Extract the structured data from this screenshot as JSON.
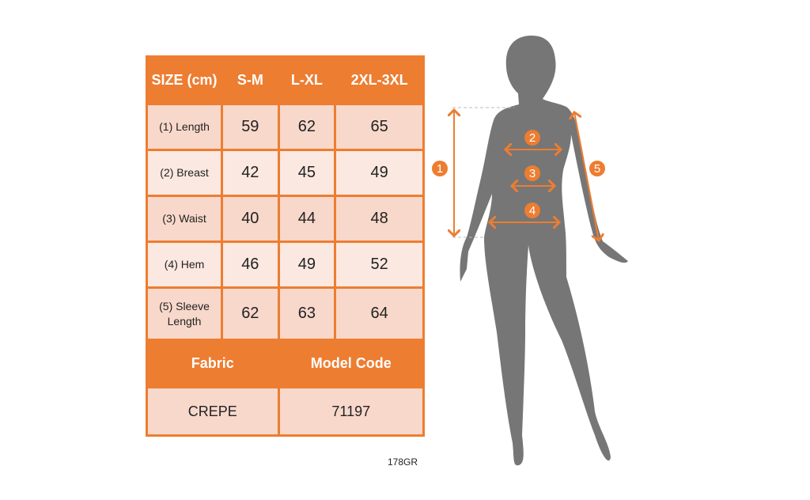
{
  "header": {
    "size": "SIZE (cm)",
    "sizes": [
      "S-M",
      "L-XL",
      "2XL-3XL"
    ]
  },
  "rows": [
    {
      "label": "(1) Length",
      "values": [
        "59",
        "62",
        "65"
      ]
    },
    {
      "label": "(2) Breast",
      "values": [
        "42",
        "45",
        "49"
      ]
    },
    {
      "label": "(3) Waist",
      "values": [
        "40",
        "44",
        "48"
      ]
    },
    {
      "label": "(4) Hem",
      "values": [
        "46",
        "49",
        "52"
      ]
    },
    {
      "label": "(5) Sleeve Length",
      "values": [
        "62",
        "63",
        "64"
      ]
    }
  ],
  "footer": {
    "fabric_label": "Fabric",
    "model_code_label": "Model Code",
    "fabric": "CREPE",
    "model_code": "71197"
  },
  "product_code": "178GR",
  "figure": {
    "markers": [
      "1",
      "2",
      "3",
      "4",
      "5"
    ]
  },
  "colors": {
    "accent": "#ed7d31",
    "row_dark": "#f8d8cb",
    "row_light": "#fbe8e1",
    "silhouette": "#767676"
  }
}
